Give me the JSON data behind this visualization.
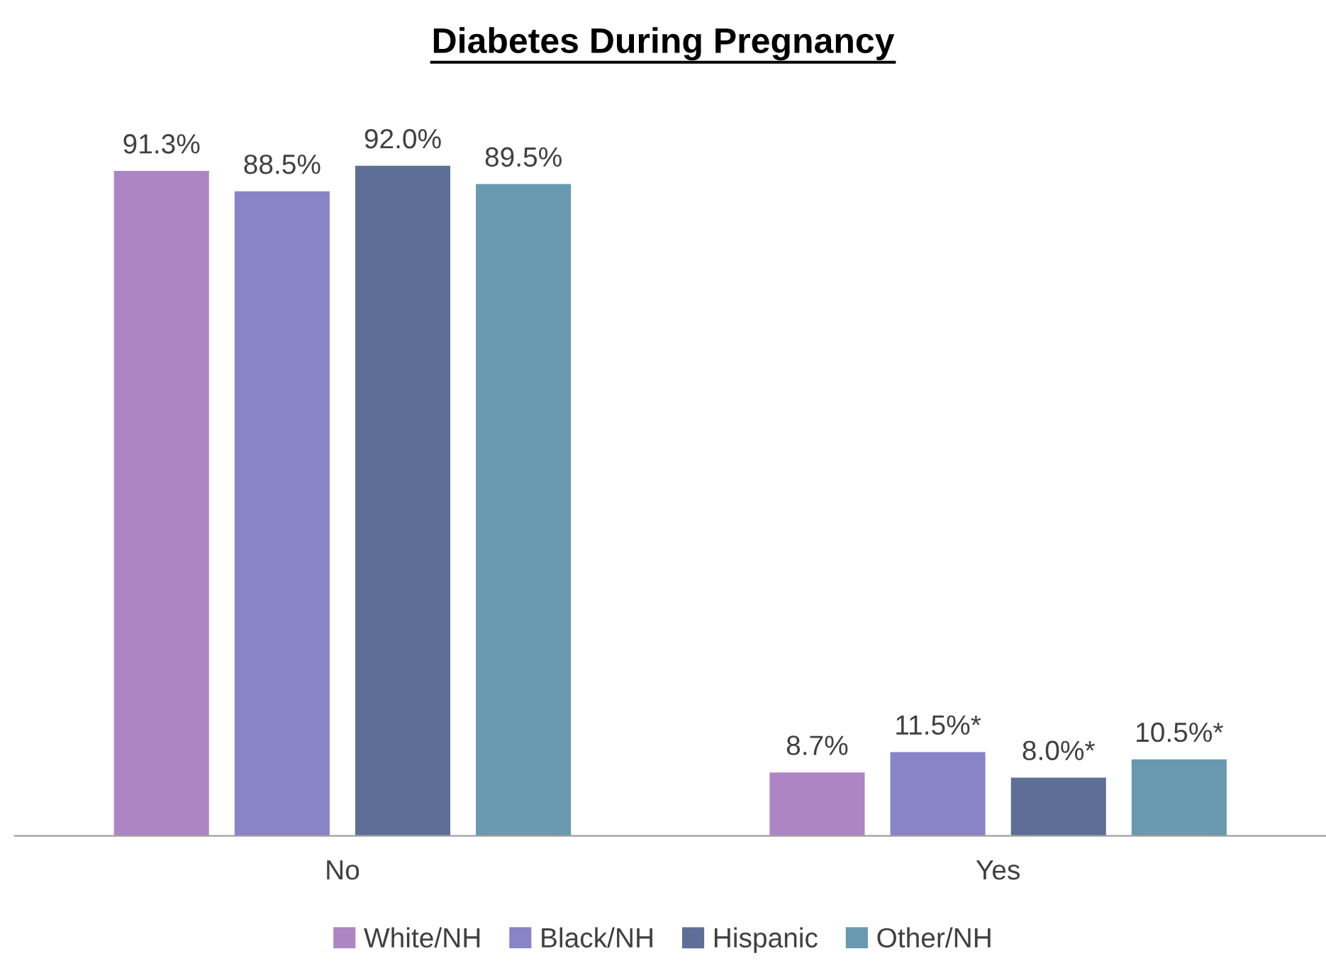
{
  "chart_data": {
    "type": "bar",
    "title": "Diabetes During Pregnancy",
    "categories": [
      "No",
      "Yes"
    ],
    "series": [
      {
        "name": "White/NH",
        "color": "#ae85c4",
        "values": [
          91.3,
          8.7
        ],
        "value_labels": [
          "91.3%",
          "8.7%"
        ]
      },
      {
        "name": "Black/NH",
        "color": "#8884c7",
        "values": [
          88.5,
          11.5
        ],
        "value_labels": [
          "88.5%",
          "11.5%*"
        ]
      },
      {
        "name": "Hispanic",
        "color": "#5d6f96",
        "values": [
          92.0,
          8.0
        ],
        "value_labels": [
          "92.0%",
          "8.0%*"
        ]
      },
      {
        "name": "Other/NH",
        "color": "#6899b0",
        "values": [
          89.5,
          10.5
        ],
        "value_labels": [
          "89.5%",
          "10.5%*"
        ]
      }
    ],
    "legend": "bottom",
    "grid": false
  }
}
